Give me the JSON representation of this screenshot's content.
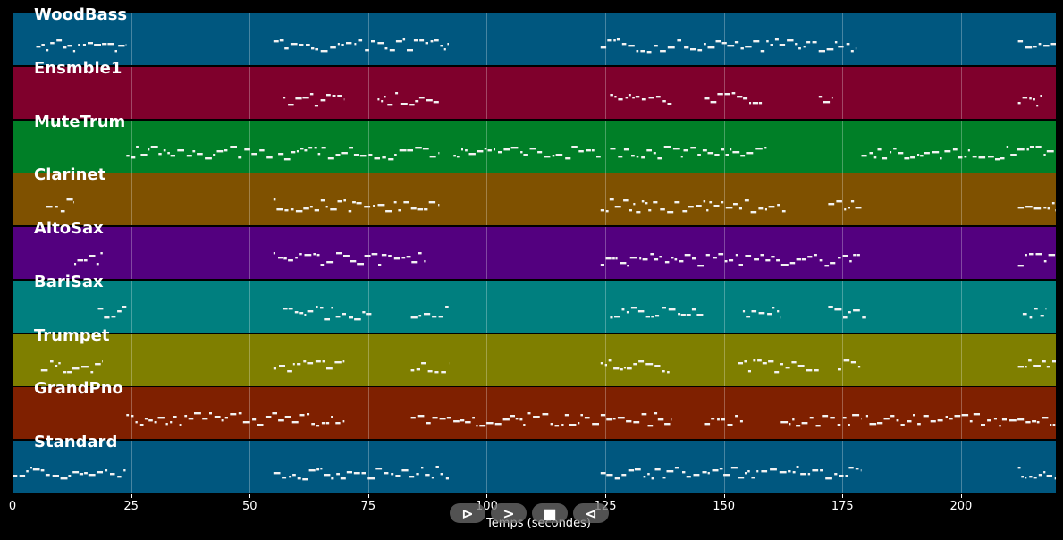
{
  "tracks": [
    {
      "name": "WoodBass",
      "color": "#00577f"
    },
    {
      "name": "Ensmble1",
      "color": "#7f002c"
    },
    {
      "name": "MuteTrum",
      "color": "#007f27"
    },
    {
      "name": "Clarinet",
      "color": "#7f5100"
    },
    {
      "name": "AltoSax",
      "color": "#53007f"
    },
    {
      "name": "BariSax",
      "color": "#007f7f"
    },
    {
      "name": "Trumpet",
      "color": "#7f7f00"
    },
    {
      "name": "GrandPno",
      "color": "#7f2000"
    },
    {
      "name": "Standard",
      "color": "#00577f"
    }
  ],
  "x_axis": {
    "label": "Temps (secondes)",
    "min": 0,
    "max": 220,
    "ticks": [
      0,
      25,
      50,
      75,
      100,
      125,
      150,
      175,
      200
    ]
  },
  "note_segments": [
    [
      [
        5,
        24
      ],
      [
        55,
        92
      ],
      [
        124,
        178
      ],
      [
        212,
        220
      ]
    ],
    [
      [
        57,
        70
      ],
      [
        77,
        90
      ],
      [
        126,
        139
      ],
      [
        146,
        158
      ],
      [
        170,
        173
      ],
      [
        212,
        217
      ]
    ],
    [
      [
        24,
        55
      ],
      [
        56,
        90
      ],
      [
        93,
        124
      ],
      [
        126,
        159
      ],
      [
        179,
        220
      ]
    ],
    [
      [
        7,
        13
      ],
      [
        55,
        90
      ],
      [
        124,
        163
      ],
      [
        172,
        179
      ],
      [
        212,
        220
      ]
    ],
    [
      [
        13,
        19
      ],
      [
        55,
        87
      ],
      [
        124,
        179
      ],
      [
        212,
        220
      ]
    ],
    [
      [
        18,
        24
      ],
      [
        57,
        76
      ],
      [
        84,
        92
      ],
      [
        126,
        146
      ],
      [
        154,
        162
      ],
      [
        172,
        180
      ],
      [
        213,
        218
      ]
    ],
    [
      [
        6,
        19
      ],
      [
        55,
        70
      ],
      [
        84,
        92
      ],
      [
        124,
        139
      ],
      [
        153,
        170
      ],
      [
        174,
        179
      ],
      [
        212,
        220
      ]
    ],
    [
      [
        24,
        70
      ],
      [
        84,
        139
      ],
      [
        146,
        154
      ],
      [
        162,
        179
      ],
      [
        180,
        220
      ]
    ],
    [
      [
        0,
        24
      ],
      [
        55,
        92
      ],
      [
        124,
        179
      ],
      [
        212,
        220
      ]
    ]
  ],
  "controls": [
    {
      "name": "play-icon",
      "glyph": "⊳"
    },
    {
      "name": "forward-icon",
      "glyph": ">"
    },
    {
      "name": "stop-icon",
      "glyph": "■"
    },
    {
      "name": "rewind-icon",
      "glyph": "⊲"
    }
  ]
}
